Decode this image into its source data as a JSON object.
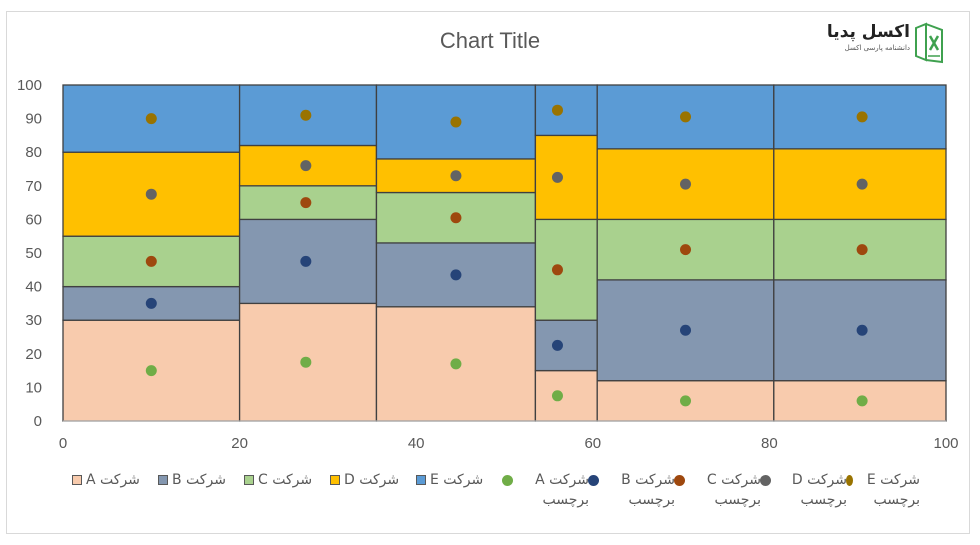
{
  "chart_data": {
    "type": "area",
    "subtype": "marimekko (variable-width 100% stacked) with scatter label markers",
    "title": "Chart Title",
    "xlim": [
      0,
      100
    ],
    "ylim": [
      0,
      100
    ],
    "x_ticks": [
      0,
      20,
      40,
      60,
      80,
      100
    ],
    "y_ticks": [
      0,
      10,
      20,
      30,
      40,
      50,
      60,
      70,
      80,
      90,
      100
    ],
    "grid": false,
    "legend_position": "bottom",
    "column_edges": [
      0,
      20,
      35.5,
      53.5,
      60.5,
      80.5,
      100.5
    ],
    "series": [
      {
        "name": "شرکت A",
        "color": "#F8CBAD",
        "values": [
          30,
          35,
          34,
          15,
          12,
          12
        ]
      },
      {
        "name": "شرکت B",
        "color": "#8497B0",
        "values": [
          10,
          25,
          19,
          15,
          30,
          30
        ]
      },
      {
        "name": "شرکت C",
        "color": "#A9D18E",
        "values": [
          15,
          10,
          15,
          30,
          18,
          18
        ]
      },
      {
        "name": "شرکت D",
        "color": "#FFC000",
        "values": [
          25,
          12,
          10,
          25,
          21,
          21
        ]
      },
      {
        "name": "شرکت E",
        "color": "#5B9BD5",
        "values": [
          20,
          18,
          22,
          15,
          19,
          19
        ]
      }
    ],
    "label_series": [
      {
        "name": "شرکت A برچسب",
        "color": "#70AD47",
        "x": [
          10,
          27.5,
          44.5,
          56,
          70.5,
          90.5
        ],
        "y": [
          15,
          17.5,
          17,
          7.5,
          6,
          6
        ]
      },
      {
        "name": "شرکت B برچسب",
        "color": "#264478",
        "x": [
          10,
          27.5,
          44.5,
          56,
          70.5,
          90.5
        ],
        "y": [
          35,
          47.5,
          43.5,
          22.5,
          27,
          27
        ]
      },
      {
        "name": "شرکت C برچسب",
        "color": "#9E480E",
        "x": [
          10,
          27.5,
          44.5,
          56,
          70.5,
          90.5
        ],
        "y": [
          47.5,
          65,
          60.5,
          45,
          51,
          51
        ]
      },
      {
        "name": "شرکت D برچسب",
        "color": "#636363",
        "x": [
          10,
          27.5,
          44.5,
          56,
          70.5,
          90.5
        ],
        "y": [
          67.5,
          76,
          73,
          72.5,
          70.5,
          70.5
        ]
      },
      {
        "name": "شرکت E برچسب",
        "color": "#997300",
        "x": [
          10,
          27.5,
          44.5,
          56,
          70.5,
          90.5
        ],
        "y": [
          90,
          91,
          89,
          92.5,
          90.5,
          90.5
        ]
      }
    ]
  },
  "logo": {
    "name": "اکسل پدیا",
    "tagline": "دانشنامه پارسی اکسل"
  }
}
